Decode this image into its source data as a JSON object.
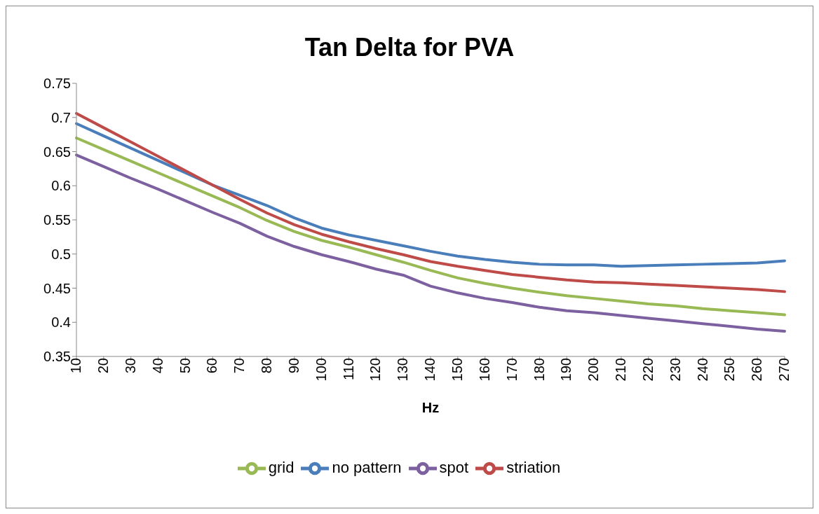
{
  "chart_data": {
    "type": "line",
    "title": "Tan Delta for PVA",
    "xlabel": "Hz",
    "categories": [
      "10",
      "20",
      "30",
      "40",
      "50",
      "60",
      "70",
      "80",
      "90",
      "100",
      "110",
      "120",
      "130",
      "140",
      "150",
      "160",
      "170",
      "180",
      "190",
      "200",
      "210",
      "220",
      "230",
      "240",
      "250",
      "260",
      "270"
    ],
    "series": [
      {
        "name": "no pattern",
        "color": "#4a7ebb",
        "values": [
          0.691,
          0.673,
          0.655,
          0.637,
          0.619,
          0.601,
          0.586,
          0.571,
          0.553,
          0.538,
          0.528,
          0.52,
          0.512,
          0.504,
          0.497,
          0.492,
          0.488,
          0.485,
          0.484,
          0.484,
          0.482,
          0.483,
          0.484,
          0.485,
          0.486,
          0.487,
          0.49
        ]
      },
      {
        "name": "striation",
        "color": "#be4b48",
        "values": [
          0.706,
          0.685,
          0.664,
          0.643,
          0.622,
          0.601,
          0.58,
          0.56,
          0.543,
          0.529,
          0.518,
          0.508,
          0.499,
          0.489,
          0.482,
          0.476,
          0.47,
          0.466,
          0.462,
          0.459,
          0.458,
          0.456,
          0.454,
          0.452,
          0.45,
          0.448,
          0.445
        ]
      },
      {
        "name": "grid",
        "color": "#98b954",
        "values": [
          0.67,
          0.653,
          0.636,
          0.619,
          0.602,
          0.585,
          0.568,
          0.549,
          0.533,
          0.52,
          0.51,
          0.499,
          0.488,
          0.476,
          0.465,
          0.457,
          0.45,
          0.444,
          0.439,
          0.435,
          0.431,
          0.427,
          0.424,
          0.42,
          0.417,
          0.414,
          0.411
        ]
      },
      {
        "name": "spot",
        "color": "#7d60a0",
        "values": [
          0.645,
          0.628,
          0.611,
          0.595,
          0.578,
          0.561,
          0.545,
          0.526,
          0.511,
          0.499,
          0.489,
          0.478,
          0.469,
          0.453,
          0.443,
          0.435,
          0.429,
          0.422,
          0.417,
          0.414,
          0.41,
          0.406,
          0.402,
          0.398,
          0.394,
          0.39,
          0.387
        ]
      }
    ],
    "ylim": [
      0.35,
      0.75
    ],
    "yticks": [
      0.35,
      0.4,
      0.45,
      0.5,
      0.55,
      0.6,
      0.65,
      0.7,
      0.75
    ],
    "grid": false,
    "legend": "bottom",
    "marker": "none",
    "line_style": "solid"
  }
}
